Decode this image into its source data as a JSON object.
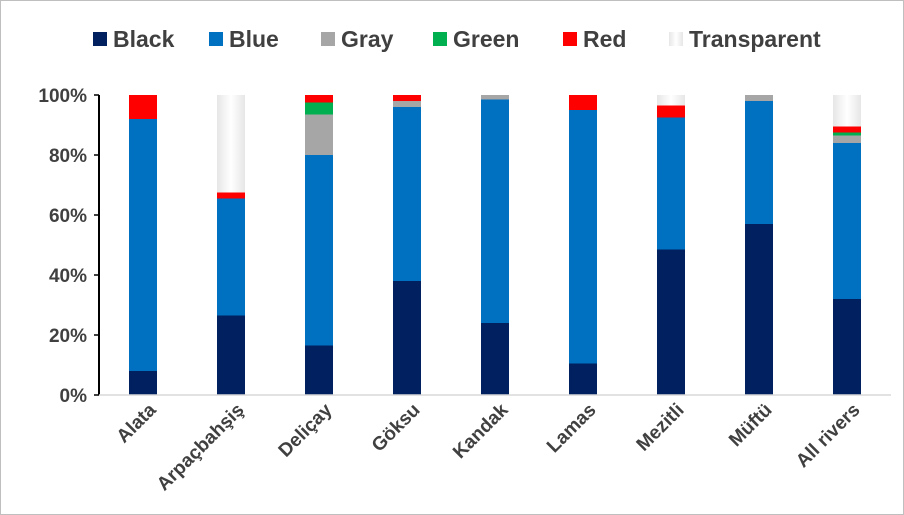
{
  "chart_data": {
    "type": "bar",
    "stacked": true,
    "title": "",
    "xlabel": "",
    "ylabel": "",
    "ylim": [
      0,
      100
    ],
    "y_ticks": [
      "0%",
      "20%",
      "40%",
      "60%",
      "80%",
      "100%"
    ],
    "y_tick_values": [
      0,
      20,
      40,
      60,
      80,
      100
    ],
    "legend_position": "top",
    "grid": false,
    "categories": [
      "Alata",
      "Arpaçbahşiş",
      "Deliçay",
      "Göksu",
      "Kandak",
      "Lamas",
      "Mezitli",
      "Müftü",
      "All rivers"
    ],
    "series": [
      {
        "name": "Black",
        "color": "#002060",
        "values": [
          8,
          26.5,
          16.5,
          38,
          24,
          10.5,
          48.5,
          57,
          32
        ]
      },
      {
        "name": "Blue",
        "color": "#0070C0",
        "values": [
          84,
          39,
          63.5,
          58,
          74.5,
          84.5,
          44,
          41,
          52
        ]
      },
      {
        "name": "Gray",
        "color": "#A6A6A6",
        "values": [
          0,
          0,
          13.5,
          2,
          1.5,
          0,
          0,
          2,
          2.5
        ]
      },
      {
        "name": "Green",
        "color": "#00B050",
        "values": [
          0,
          0,
          4,
          0,
          0,
          0,
          0,
          0,
          1
        ]
      },
      {
        "name": "Red",
        "color": "#FF0000",
        "values": [
          8,
          2,
          2.5,
          2,
          0,
          5,
          4,
          0,
          2
        ]
      },
      {
        "name": "Transparent",
        "color": "#F2F2F2",
        "values": [
          0,
          32.5,
          0,
          0,
          0,
          0,
          3.5,
          0,
          10.5
        ]
      }
    ]
  }
}
